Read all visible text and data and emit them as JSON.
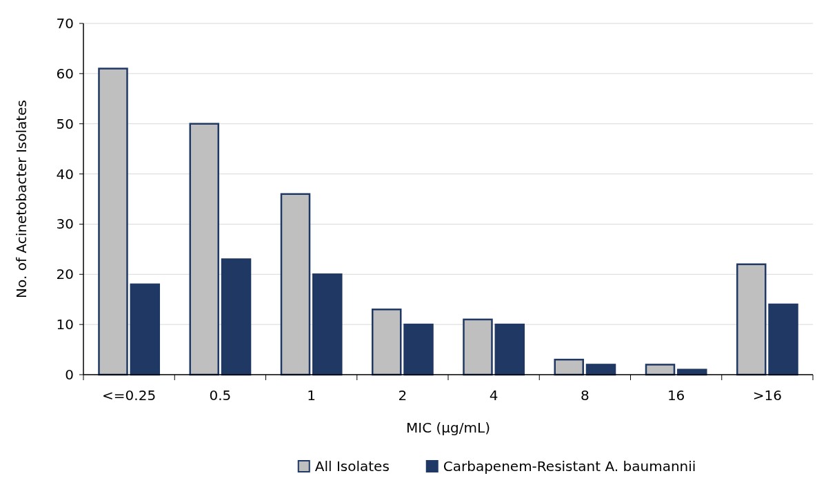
{
  "chart_data": {
    "type": "bar",
    "xlabel": "MIC (µg/mL)",
    "ylabel": "No. of Acinetobacter Isolates",
    "categories": [
      "<=0.25",
      "0.5",
      "1",
      "2",
      "4",
      "8",
      "16",
      ">16"
    ],
    "series": [
      {
        "name": "All Isolates",
        "color": "#bfbfbf",
        "values": [
          61,
          50,
          36,
          13,
          11,
          3,
          2,
          22
        ]
      },
      {
        "name": "Carbapenem-Resistant A. baumannii",
        "color": "#203864",
        "values": [
          18,
          23,
          20,
          10,
          10,
          2,
          1,
          14
        ]
      }
    ],
    "ylim": [
      0,
      70
    ],
    "yticks": [
      0,
      10,
      20,
      30,
      40,
      50,
      60,
      70
    ],
    "grid": "y",
    "legend": "bottom"
  }
}
